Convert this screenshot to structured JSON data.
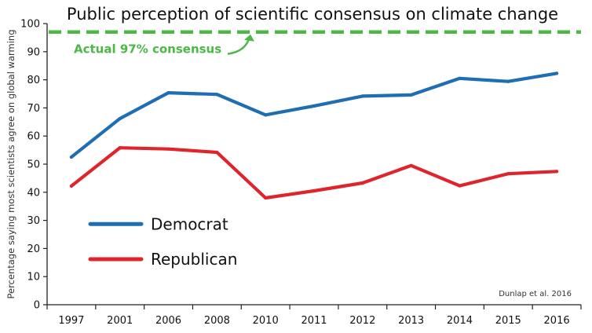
{
  "chart_data": {
    "type": "line",
    "title": "Public perception of scientific consensus on climate change",
    "ylabel": "Percentage saying most scientists agree on global warming",
    "xlabel": "",
    "categories": [
      "1997",
      "2001",
      "2006",
      "2008",
      "2010",
      "2011",
      "2012",
      "2013",
      "2014",
      "2015",
      "2016"
    ],
    "ylim": [
      0,
      100
    ],
    "yticks": [
      0,
      10,
      20,
      30,
      40,
      50,
      60,
      70,
      80,
      90,
      100
    ],
    "grid": false,
    "legend_position": "lower-left",
    "series": [
      {
        "name": "Democrat",
        "color": "#1f6db3",
        "values": [
          52.5,
          66.2,
          75.4,
          74.8,
          67.5,
          70.7,
          74.2,
          74.6,
          80.5,
          79.4,
          82.3
        ]
      },
      {
        "name": "Republican",
        "color": "#e0242b",
        "values": [
          42.2,
          55.8,
          55.4,
          54.2,
          38.0,
          40.5,
          43.3,
          49.5,
          42.3,
          46.6,
          47.4
        ]
      }
    ],
    "reference_line": {
      "value": 97,
      "label": "Actual 97% consensus",
      "color": "#4cb947",
      "style": "dashed"
    },
    "source": "Dunlap et al. 2016"
  }
}
